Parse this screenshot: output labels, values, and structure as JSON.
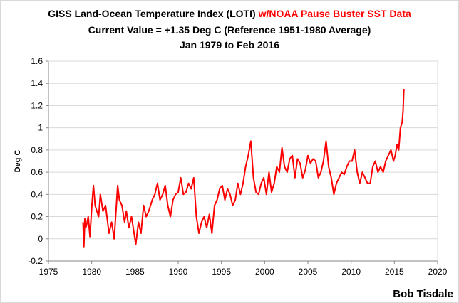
{
  "chart_data": {
    "type": "line",
    "title": {
      "prefix": "GISS Land-Ocean Temperature Index (LOTI) ",
      "highlight": "w/NOAA Pause Buster SST Data",
      "highlight_color": "#ff0000"
    },
    "subtitle_line1": "Current Value = +1.35 Deg C (Reference 1951-1980 Average)",
    "subtitle_line2": "Jan 1979 to Feb 2016",
    "ylabel": "Deg C",
    "xlabel": "",
    "xlim": [
      1975,
      2020
    ],
    "ylim": [
      -0.2,
      1.6
    ],
    "xticks": [
      1975,
      1980,
      1985,
      1990,
      1995,
      2000,
      2005,
      2010,
      2015,
      2020
    ],
    "yticks": [
      -0.2,
      0,
      0.2,
      0.4,
      0.6,
      0.8,
      1,
      1.2,
      1.4,
      1.6
    ],
    "ytick_labels": [
      "-0.2",
      "0",
      "0.2",
      "0.4",
      "0.6",
      "0.8",
      "1",
      "1.2",
      "1.4",
      "1.6"
    ],
    "grid": "horizontal",
    "series": [
      {
        "color": "#ff0000",
        "x": [
          1979.0,
          1979.1,
          1979.2,
          1979.3,
          1979.4,
          1979.6,
          1979.8,
          1980.0,
          1980.2,
          1980.4,
          1980.6,
          1980.8,
          1981.0,
          1981.3,
          1981.6,
          1982.0,
          1982.3,
          1982.6,
          1983.0,
          1983.2,
          1983.5,
          1983.8,
          1984.0,
          1984.3,
          1984.6,
          1984.9,
          1985.1,
          1985.4,
          1985.7,
          1986.0,
          1986.3,
          1986.6,
          1987.0,
          1987.3,
          1987.6,
          1987.9,
          1988.2,
          1988.5,
          1988.8,
          1989.1,
          1989.4,
          1989.7,
          1990.0,
          1990.3,
          1990.6,
          1990.9,
          1991.2,
          1991.5,
          1991.8,
          1992.1,
          1992.4,
          1992.7,
          1993.0,
          1993.3,
          1993.6,
          1993.9,
          1994.2,
          1994.5,
          1994.8,
          1995.1,
          1995.4,
          1995.7,
          1996.0,
          1996.3,
          1996.6,
          1996.9,
          1997.2,
          1997.5,
          1997.8,
          1998.1,
          1998.4,
          1998.7,
          1999.0,
          1999.3,
          1999.6,
          1999.9,
          2000.2,
          2000.5,
          2000.8,
          2001.1,
          2001.4,
          2001.7,
          2002.0,
          2002.3,
          2002.6,
          2002.9,
          2003.2,
          2003.5,
          2003.8,
          2004.1,
          2004.4,
          2004.7,
          2005.0,
          2005.3,
          2005.6,
          2005.9,
          2006.2,
          2006.5,
          2006.8,
          2007.1,
          2007.4,
          2007.7,
          2008.0,
          2008.3,
          2008.6,
          2008.9,
          2009.2,
          2009.5,
          2009.8,
          2010.1,
          2010.4,
          2010.7,
          2011.0,
          2011.3,
          2011.6,
          2011.9,
          2012.2,
          2012.5,
          2012.8,
          2013.1,
          2013.4,
          2013.7,
          2014.0,
          2014.3,
          2014.6,
          2014.9,
          2015.1,
          2015.3,
          2015.5,
          2015.7,
          2015.9,
          2016.0,
          2016.1
        ],
        "values": [
          0.15,
          -0.07,
          0.18,
          0.1,
          0.12,
          0.2,
          0.02,
          0.28,
          0.48,
          0.3,
          0.25,
          0.2,
          0.4,
          0.25,
          0.3,
          0.05,
          0.15,
          0.0,
          0.48,
          0.35,
          0.3,
          0.15,
          0.25,
          0.1,
          0.2,
          0.05,
          -0.05,
          0.15,
          0.05,
          0.3,
          0.2,
          0.25,
          0.35,
          0.4,
          0.5,
          0.35,
          0.4,
          0.48,
          0.3,
          0.2,
          0.35,
          0.4,
          0.42,
          0.55,
          0.4,
          0.42,
          0.5,
          0.45,
          0.55,
          0.2,
          0.05,
          0.15,
          0.2,
          0.1,
          0.22,
          0.05,
          0.3,
          0.35,
          0.45,
          0.48,
          0.35,
          0.45,
          0.4,
          0.3,
          0.35,
          0.5,
          0.4,
          0.5,
          0.65,
          0.75,
          0.88,
          0.55,
          0.42,
          0.4,
          0.5,
          0.55,
          0.4,
          0.6,
          0.42,
          0.5,
          0.65,
          0.6,
          0.82,
          0.65,
          0.6,
          0.72,
          0.75,
          0.55,
          0.72,
          0.68,
          0.55,
          0.62,
          0.75,
          0.68,
          0.72,
          0.7,
          0.55,
          0.6,
          0.7,
          0.88,
          0.65,
          0.55,
          0.4,
          0.5,
          0.55,
          0.6,
          0.58,
          0.65,
          0.7,
          0.7,
          0.8,
          0.6,
          0.5,
          0.6,
          0.55,
          0.5,
          0.5,
          0.65,
          0.7,
          0.6,
          0.65,
          0.6,
          0.7,
          0.75,
          0.8,
          0.7,
          0.75,
          0.85,
          0.8,
          1.0,
          1.05,
          1.15,
          1.35
        ]
      }
    ]
  },
  "credit": "Bob Tisdale"
}
